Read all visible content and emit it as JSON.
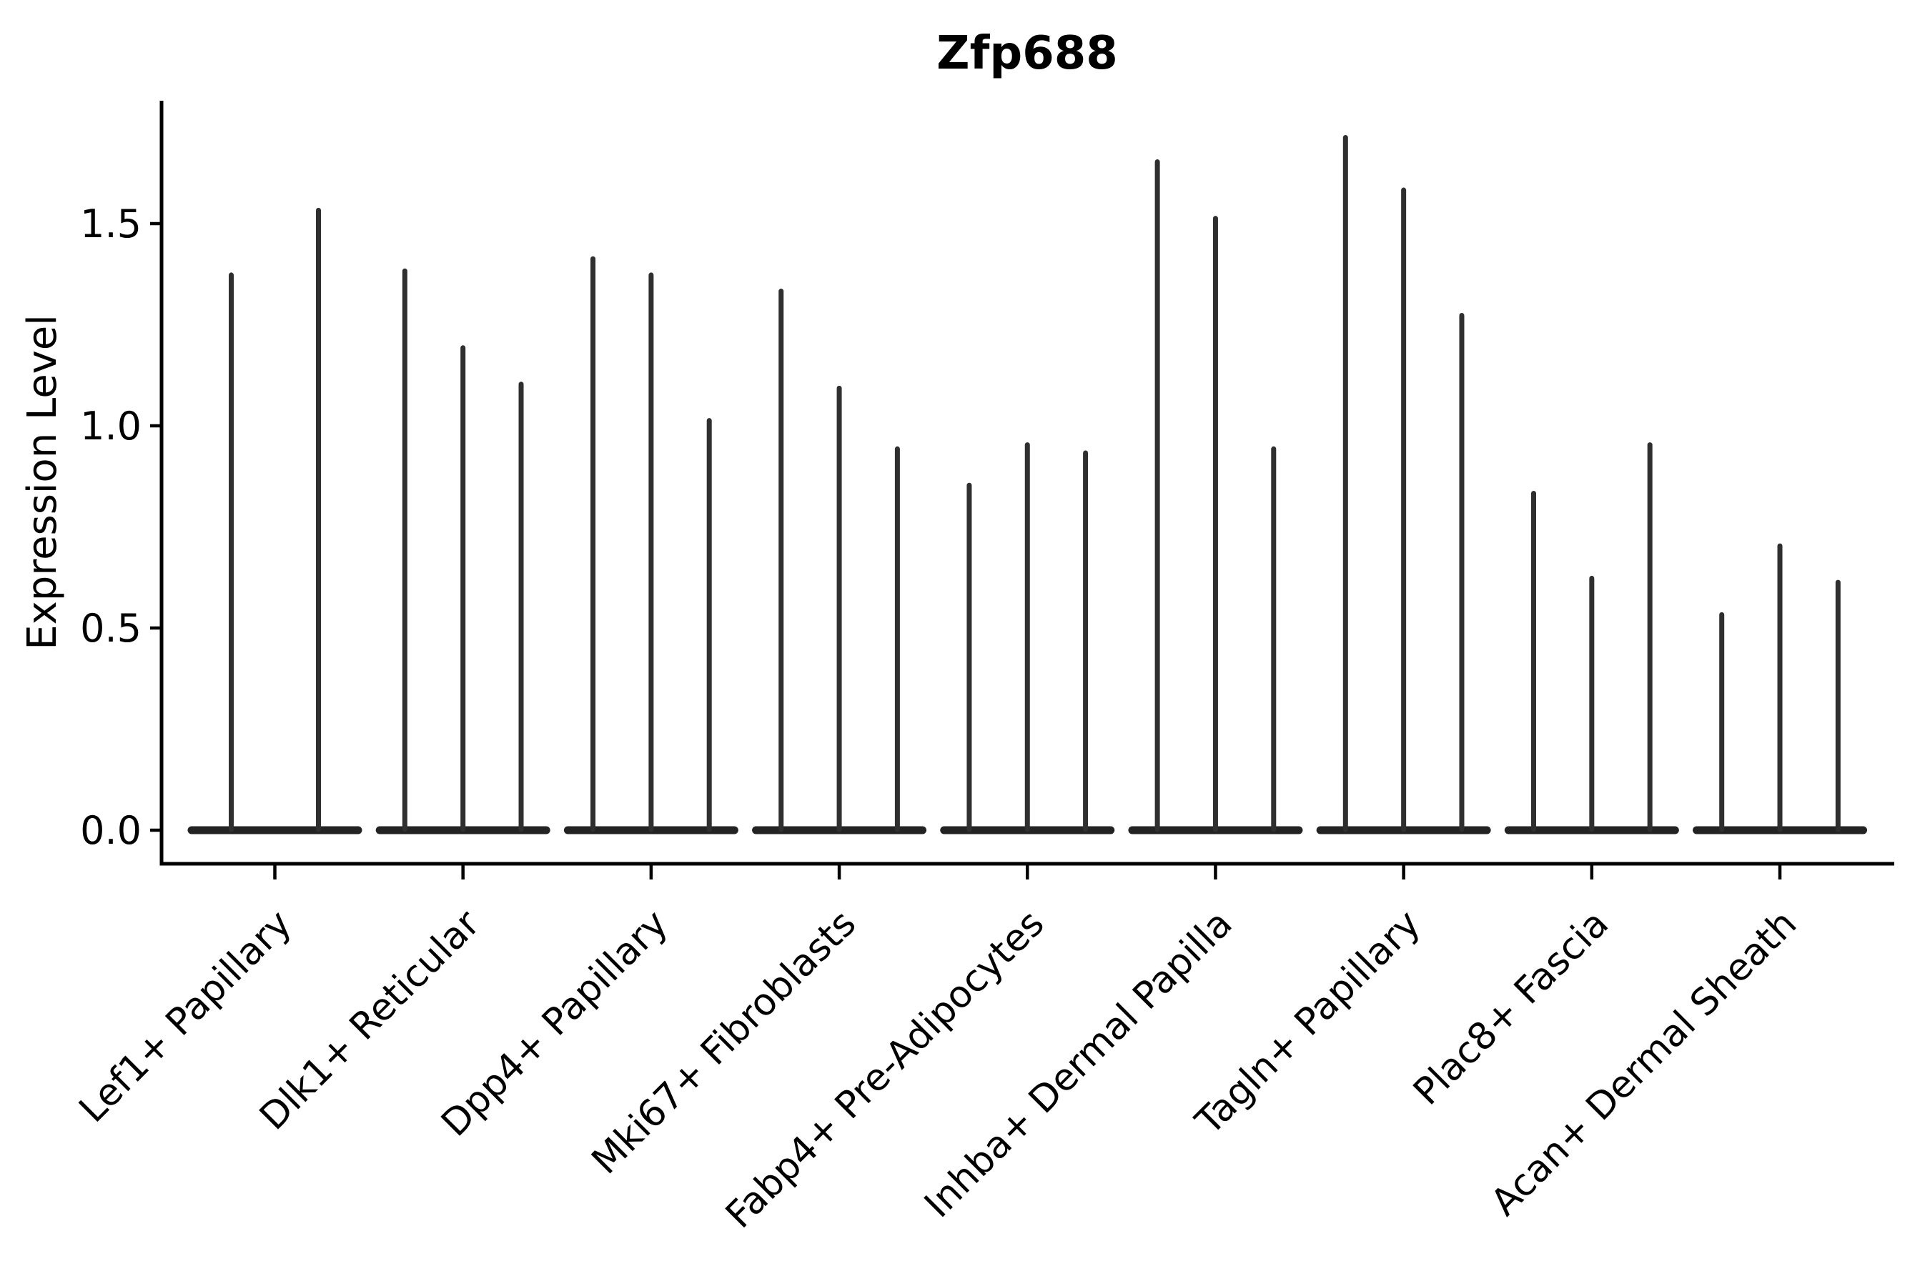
{
  "title": "Zfp688",
  "colors": {
    "background": "#ffffff",
    "violin": "#2f2f2f",
    "violin_base": "#232323",
    "axis": "#000000",
    "text": "#000000"
  },
  "chart_data": {
    "type": "violin",
    "title": "Zfp688",
    "xlabel": "",
    "ylabel": "Expression Level",
    "ylim": [
      -0.08,
      1.8
    ],
    "y_ticks": [
      {
        "value": 0.0,
        "label": "0.0"
      },
      {
        "value": 0.5,
        "label": "0.5"
      },
      {
        "value": 1.0,
        "label": "1.0"
      },
      {
        "value": 1.5,
        "label": "1.5"
      }
    ],
    "grid": "off",
    "legend": "none",
    "x_tick_rotation": 45,
    "violin_style": "very thin spikes with wide flat base at zero (sparse expression)",
    "categories": [
      "Lef1+ Papillary",
      "Dlk1+ Reticular",
      "Dpp4+ Papillary",
      "Mki67+ Fibroblasts",
      "Fabp4+ Pre-Adipocytes",
      "Inhba+ Dermal Papilla",
      "Tagln+ Papillary",
      "Plac8+ Fascia",
      "Acan+ Dermal Sheath"
    ],
    "groups": [
      {
        "label": "Lef1+ Papillary",
        "violin_maxima": [
          1.38,
          1.54
        ]
      },
      {
        "label": "Dlk1+ Reticular",
        "violin_maxima": [
          1.39,
          1.2,
          1.11
        ]
      },
      {
        "label": "Dpp4+ Papillary",
        "violin_maxima": [
          1.42,
          1.38,
          1.02
        ]
      },
      {
        "label": "Mki67+ Fibroblasts",
        "violin_maxima": [
          1.34,
          1.1,
          0.95
        ]
      },
      {
        "label": "Fabp4+ Pre-Adipocytes",
        "violin_maxima": [
          0.86,
          0.96,
          0.94
        ]
      },
      {
        "label": "Inhba+ Dermal Papilla",
        "violin_maxima": [
          1.66,
          1.52,
          0.95
        ]
      },
      {
        "label": "Tagln+ Papillary",
        "violin_maxima": [
          1.72,
          1.59,
          1.28
        ]
      },
      {
        "label": "Plac8+ Fascia",
        "violin_maxima": [
          0.84,
          0.63,
          0.96
        ]
      },
      {
        "label": "Acan+ Dermal Sheath",
        "violin_maxima": [
          0.54,
          0.71,
          0.62
        ]
      }
    ]
  }
}
